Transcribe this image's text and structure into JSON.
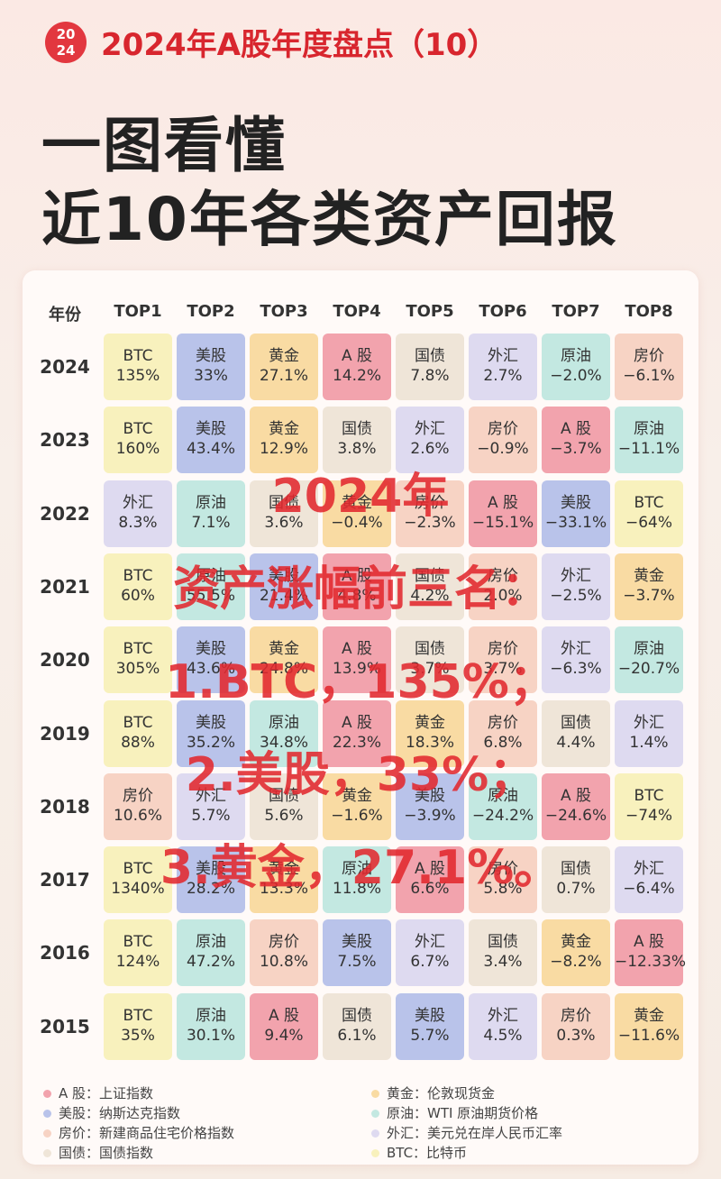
{
  "header": {
    "badge": [
      "20",
      "24"
    ],
    "title": "2024年A股年度盘点（10）"
  },
  "headline": [
    "一图看懂",
    "近10年各类资产回报"
  ],
  "table": {
    "columns": [
      "年份",
      "TOP1",
      "TOP2",
      "TOP3",
      "TOP4",
      "TOP5",
      "TOP6",
      "TOP7",
      "TOP8"
    ],
    "rows": [
      {
        "year": "2024",
        "cells": [
          [
            "BTC",
            "135%"
          ],
          [
            "美股",
            "33%"
          ],
          [
            "黄金",
            "27.1%"
          ],
          [
            "A 股",
            "14.2%"
          ],
          [
            "国债",
            "7.8%"
          ],
          [
            "外汇",
            "2.7%"
          ],
          [
            "原油",
            "−2.0%"
          ],
          [
            "房价",
            "−6.1%"
          ]
        ]
      },
      {
        "year": "2023",
        "cells": [
          [
            "BTC",
            "160%"
          ],
          [
            "美股",
            "43.4%"
          ],
          [
            "黄金",
            "12.9%"
          ],
          [
            "国债",
            "3.8%"
          ],
          [
            "外汇",
            "2.6%"
          ],
          [
            "房价",
            "−0.9%"
          ],
          [
            "A 股",
            "−3.7%"
          ],
          [
            "原油",
            "−11.1%"
          ]
        ]
      },
      {
        "year": "2022",
        "cells": [
          [
            "外汇",
            "8.3%"
          ],
          [
            "原油",
            "7.1%"
          ],
          [
            "国债",
            "3.6%"
          ],
          [
            "黄金",
            "−0.4%"
          ],
          [
            "房价",
            "−2.3%"
          ],
          [
            "A 股",
            "−15.1%"
          ],
          [
            "美股",
            "−33.1%"
          ],
          [
            "BTC",
            "−64%"
          ]
        ]
      },
      {
        "year": "2021",
        "cells": [
          [
            "BTC",
            "60%"
          ],
          [
            "原油",
            "55.5%"
          ],
          [
            "美股",
            "21.4%"
          ],
          [
            "A 股",
            "4.8%"
          ],
          [
            "国债",
            "4.2%"
          ],
          [
            "房价",
            "2.0%"
          ],
          [
            "外汇",
            "−2.5%"
          ],
          [
            "黄金",
            "−3.7%"
          ]
        ]
      },
      {
        "year": "2020",
        "cells": [
          [
            "BTC",
            "305%"
          ],
          [
            "美股",
            "43.6%"
          ],
          [
            "黄金",
            "24.8%"
          ],
          [
            "A 股",
            "13.9%"
          ],
          [
            "国债",
            "3.7%"
          ],
          [
            "房价",
            "3.7%"
          ],
          [
            "外汇",
            "−6.3%"
          ],
          [
            "原油",
            "−20.7%"
          ]
        ]
      },
      {
        "year": "2019",
        "cells": [
          [
            "BTC",
            "88%"
          ],
          [
            "美股",
            "35.2%"
          ],
          [
            "原油",
            "34.8%"
          ],
          [
            "A 股",
            "22.3%"
          ],
          [
            "黄金",
            "18.3%"
          ],
          [
            "房价",
            "6.8%"
          ],
          [
            "国债",
            "4.4%"
          ],
          [
            "外汇",
            "1.4%"
          ]
        ]
      },
      {
        "year": "2018",
        "cells": [
          [
            "房价",
            "10.6%"
          ],
          [
            "外汇",
            "5.7%"
          ],
          [
            "国债",
            "5.6%"
          ],
          [
            "黄金",
            "−1.6%"
          ],
          [
            "美股",
            "−3.9%"
          ],
          [
            "原油",
            "−24.2%"
          ],
          [
            "A 股",
            "−24.6%"
          ],
          [
            "BTC",
            "−74%"
          ]
        ]
      },
      {
        "year": "2017",
        "cells": [
          [
            "BTC",
            "1340%"
          ],
          [
            "美股",
            "28.2%"
          ],
          [
            "黄金",
            "13.3%"
          ],
          [
            "原油",
            "11.8%"
          ],
          [
            "A 股",
            "6.6%"
          ],
          [
            "房价",
            "5.8%"
          ],
          [
            "国债",
            "0.7%"
          ],
          [
            "外汇",
            "−6.4%"
          ]
        ]
      },
      {
        "year": "2016",
        "cells": [
          [
            "BTC",
            "124%"
          ],
          [
            "原油",
            "47.2%"
          ],
          [
            "房价",
            "10.8%"
          ],
          [
            "美股",
            "7.5%"
          ],
          [
            "外汇",
            "6.7%"
          ],
          [
            "国债",
            "3.4%"
          ],
          [
            "黄金",
            "−8.2%"
          ],
          [
            "A 股",
            "−12.33%"
          ]
        ]
      },
      {
        "year": "2015",
        "cells": [
          [
            "BTC",
            "35%"
          ],
          [
            "原油",
            "30.1%"
          ],
          [
            "A 股",
            "9.4%"
          ],
          [
            "国债",
            "6.1%"
          ],
          [
            "美股",
            "5.7%"
          ],
          [
            "外汇",
            "4.5%"
          ],
          [
            "房价",
            "0.3%"
          ],
          [
            "黄金",
            "−11.6%"
          ]
        ]
      }
    ]
  },
  "overlay": [
    "2024年",
    "资产涨幅前三名：",
    "1.BTC，135%；",
    "2.美股，33%；",
    "3.黄金，27.1%。"
  ],
  "legend": [
    {
      "label": "A 股：上证指数",
      "color": "#f2a3ad"
    },
    {
      "label": "美股：纳斯达克指数",
      "color": "#b9c3ea"
    },
    {
      "label": "房价：新建商品住宅价格指数",
      "color": "#f7d3c4"
    },
    {
      "label": "国债：国债指数",
      "color": "#efe5d8"
    },
    {
      "label": "黄金：伦敦现货金",
      "color": "#f9dba3"
    },
    {
      "label": "原油：WTI 原油期货价格",
      "color": "#c3e8e1"
    },
    {
      "label": "外汇：美元兑在岸人民币汇率",
      "color": "#dedaf0"
    },
    {
      "label": "BTC：比特币",
      "color": "#f8f1bd"
    }
  ]
}
